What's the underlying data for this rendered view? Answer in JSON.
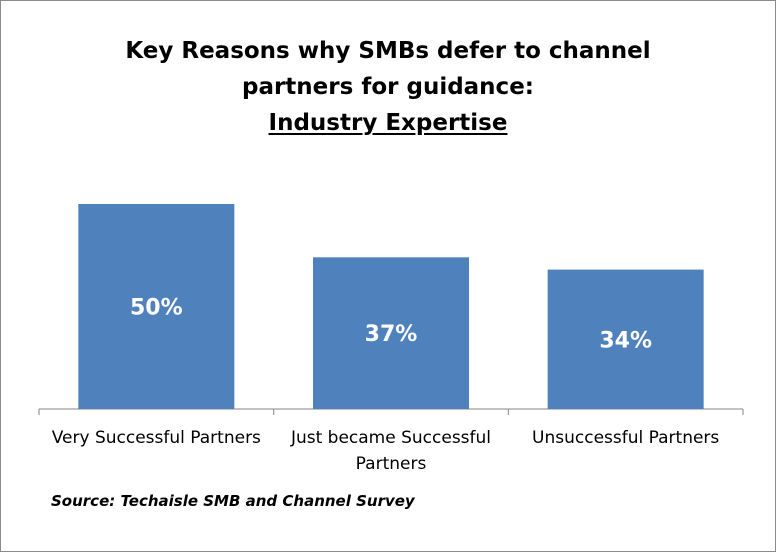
{
  "chart_data": {
    "type": "bar",
    "title_lines": [
      "Key Reasons why SMBs defer to channel",
      "partners for guidance:"
    ],
    "subtitle": "Industry Expertise",
    "categories": [
      [
        "Very Successful Partners"
      ],
      [
        "Just became Successful",
        "Partners"
      ],
      [
        "Unsuccessful Partners"
      ]
    ],
    "values": [
      50,
      37,
      34
    ],
    "value_labels": [
      "50%",
      "37%",
      "34%"
    ],
    "unit": "%",
    "ylim": [
      0,
      60
    ],
    "grid": false,
    "legend": "none",
    "bar_color": "#4f81bd"
  },
  "source": "Source: Techaisle SMB and Channel Survey"
}
